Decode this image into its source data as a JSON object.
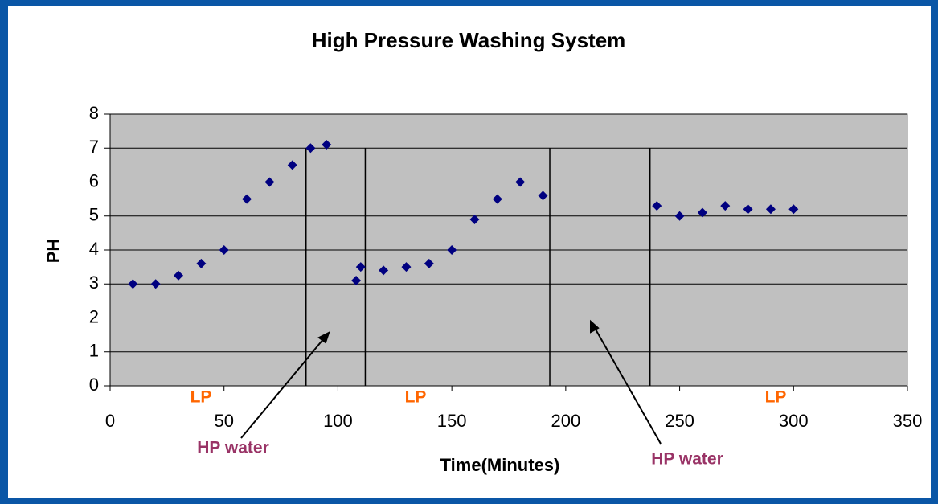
{
  "chart_data": {
    "type": "scatter",
    "title": "High Pressure Washing System",
    "x_label": "Time(Minutes)",
    "y_label": "PH",
    "series": [
      {
        "name": "PH",
        "color": "#000080",
        "x": [
          10,
          20,
          30,
          40,
          50,
          60,
          70,
          80,
          88,
          95,
          108,
          110,
          120,
          130,
          140,
          150,
          160,
          170,
          180,
          190,
          240,
          250,
          260,
          270,
          280,
          290,
          300
        ],
        "values": [
          3,
          3,
          3.25,
          3.6,
          4,
          5.5,
          6,
          6.5,
          7,
          7.1,
          3.1,
          3.5,
          3.4,
          3.5,
          3.6,
          4,
          4.9,
          5.5,
          6,
          5.6,
          5.3,
          5,
          5.1,
          5.3,
          5.2,
          5.2,
          5.2
        ]
      }
    ],
    "xlim": [
      0,
      350
    ],
    "xticks": [
      0,
      50,
      100,
      150,
      200,
      250,
      300,
      350
    ],
    "ylim": [
      0,
      8
    ],
    "yticks": [
      0,
      1,
      2,
      3,
      4,
      5,
      6,
      7,
      8
    ],
    "grid": true,
    "vlines": {
      "x": [
        86,
        112,
        193,
        237
      ],
      "top": 7
    },
    "annotations": [
      "LP",
      "LP",
      "LP",
      "HP water",
      "HP water"
    ]
  }
}
